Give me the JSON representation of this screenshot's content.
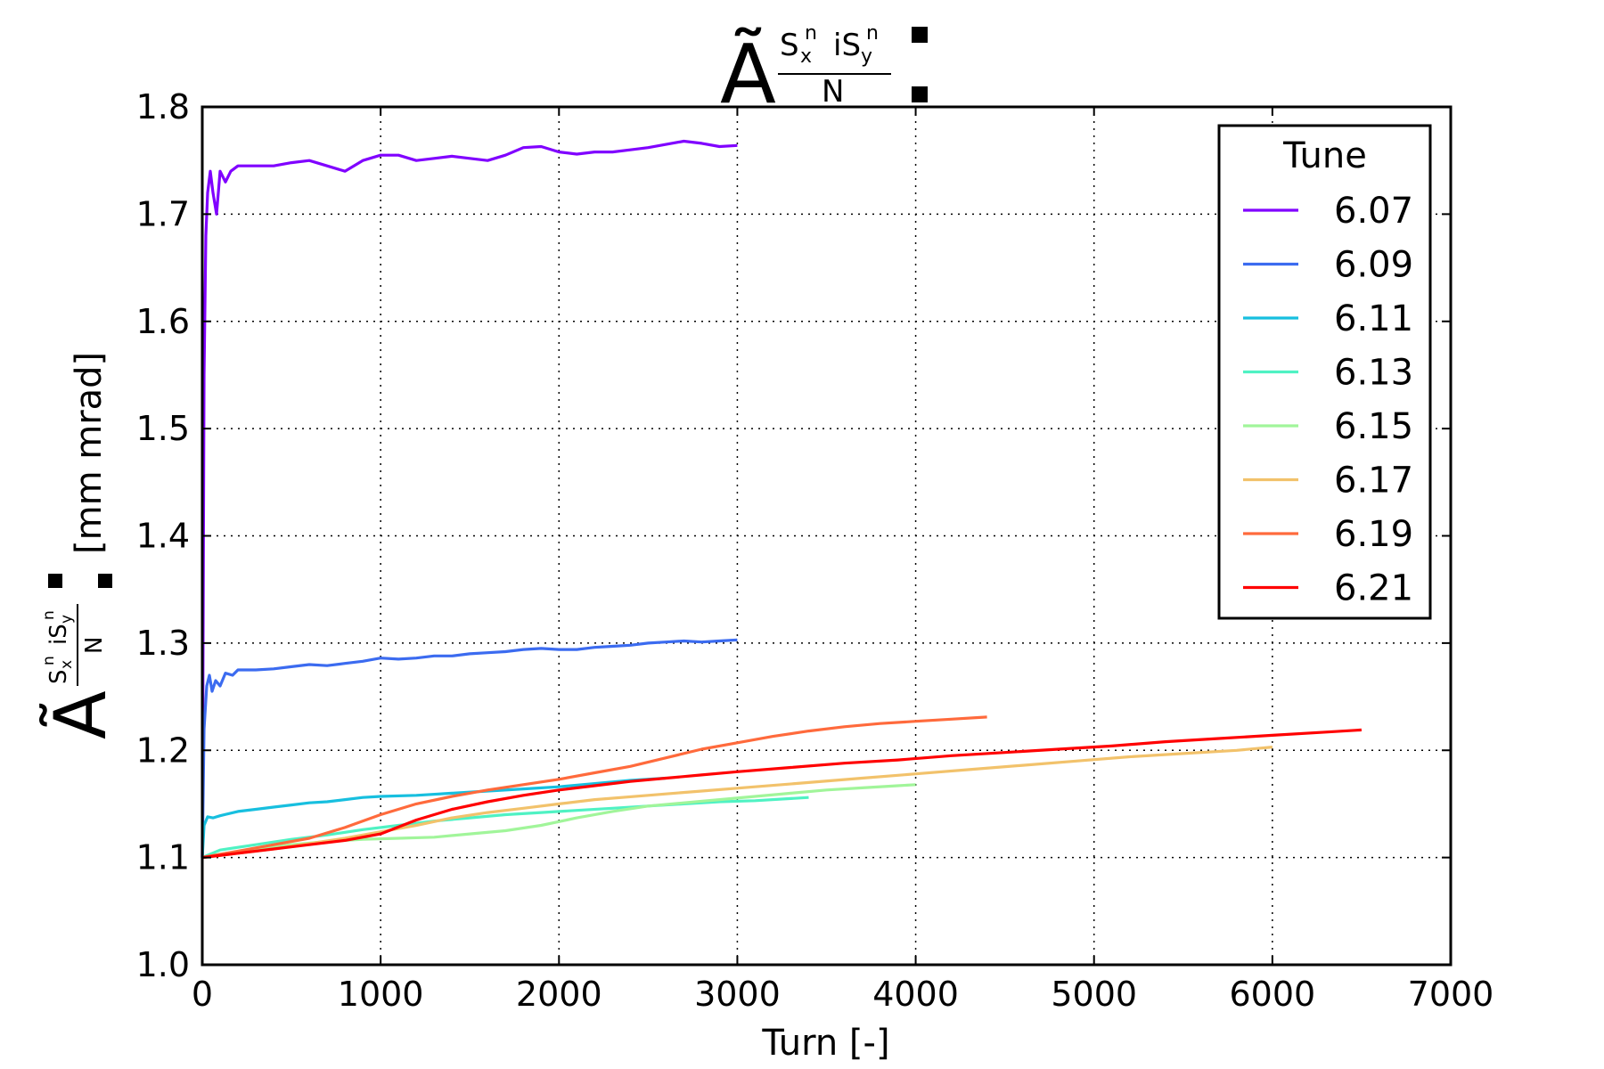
{
  "chart_data": {
    "type": "line",
    "title": "Ã(S_x^n iS_y^n / N):",
    "title_parts": {
      "main": "Ã",
      "num_a": "S",
      "num_a_sub": "x",
      "num_a_sup": "n",
      "num_b": "iS",
      "num_b_sub": "y",
      "num_b_sup": "n",
      "den": "N"
    },
    "xlabel": "Turn [-]",
    "ylabel_suffix": "[mm mrad]",
    "xlim": [
      0,
      7000
    ],
    "ylim": [
      1.0,
      1.8
    ],
    "xticks": [
      "0",
      "1000",
      "2000",
      "3000",
      "4000",
      "5000",
      "6000",
      "7000"
    ],
    "yticks": [
      "1.0",
      "1.1",
      "1.2",
      "1.3",
      "1.4",
      "1.5",
      "1.6",
      "1.7",
      "1.8"
    ],
    "grid": true,
    "legend": {
      "title": "Tune",
      "placement": "top-right"
    },
    "series": [
      {
        "name": "6.07",
        "color": "#8000ff",
        "points": [
          [
            0,
            1.1
          ],
          [
            10,
            1.55
          ],
          [
            20,
            1.68
          ],
          [
            30,
            1.72
          ],
          [
            45,
            1.74
          ],
          [
            60,
            1.72
          ],
          [
            80,
            1.7
          ],
          [
            100,
            1.74
          ],
          [
            130,
            1.73
          ],
          [
            160,
            1.74
          ],
          [
            200,
            1.745
          ],
          [
            300,
            1.745
          ],
          [
            400,
            1.745
          ],
          [
            500,
            1.748
          ],
          [
            600,
            1.75
          ],
          [
            700,
            1.745
          ],
          [
            800,
            1.74
          ],
          [
            900,
            1.75
          ],
          [
            1000,
            1.755
          ],
          [
            1100,
            1.755
          ],
          [
            1200,
            1.75
          ],
          [
            1300,
            1.752
          ],
          [
            1400,
            1.754
          ],
          [
            1500,
            1.752
          ],
          [
            1600,
            1.75
          ],
          [
            1700,
            1.755
          ],
          [
            1800,
            1.762
          ],
          [
            1900,
            1.763
          ],
          [
            2000,
            1.758
          ],
          [
            2100,
            1.756
          ],
          [
            2200,
            1.758
          ],
          [
            2300,
            1.758
          ],
          [
            2400,
            1.76
          ],
          [
            2500,
            1.762
          ],
          [
            2600,
            1.765
          ],
          [
            2700,
            1.768
          ],
          [
            2800,
            1.766
          ],
          [
            2900,
            1.763
          ],
          [
            3000,
            1.764
          ]
        ]
      },
      {
        "name": "6.09",
        "color": "#3b6bf0",
        "points": [
          [
            0,
            1.1
          ],
          [
            10,
            1.22
          ],
          [
            25,
            1.26
          ],
          [
            40,
            1.27
          ],
          [
            55,
            1.255
          ],
          [
            75,
            1.265
          ],
          [
            100,
            1.26
          ],
          [
            130,
            1.272
          ],
          [
            170,
            1.27
          ],
          [
            200,
            1.275
          ],
          [
            300,
            1.275
          ],
          [
            400,
            1.276
          ],
          [
            500,
            1.278
          ],
          [
            600,
            1.28
          ],
          [
            700,
            1.279
          ],
          [
            800,
            1.281
          ],
          [
            900,
            1.283
          ],
          [
            1000,
            1.286
          ],
          [
            1100,
            1.285
          ],
          [
            1200,
            1.286
          ],
          [
            1300,
            1.288
          ],
          [
            1400,
            1.288
          ],
          [
            1500,
            1.29
          ],
          [
            1600,
            1.291
          ],
          [
            1700,
            1.292
          ],
          [
            1800,
            1.294
          ],
          [
            1900,
            1.295
          ],
          [
            2000,
            1.294
          ],
          [
            2100,
            1.294
          ],
          [
            2200,
            1.296
          ],
          [
            2300,
            1.297
          ],
          [
            2400,
            1.298
          ],
          [
            2500,
            1.3
          ],
          [
            2600,
            1.301
          ],
          [
            2700,
            1.302
          ],
          [
            2800,
            1.301
          ],
          [
            2900,
            1.302
          ],
          [
            3000,
            1.303
          ]
        ]
      },
      {
        "name": "6.11",
        "color": "#17bfdf",
        "points": [
          [
            0,
            1.1
          ],
          [
            10,
            1.13
          ],
          [
            30,
            1.138
          ],
          [
            60,
            1.137
          ],
          [
            100,
            1.139
          ],
          [
            200,
            1.143
          ],
          [
            300,
            1.145
          ],
          [
            400,
            1.147
          ],
          [
            500,
            1.149
          ],
          [
            600,
            1.151
          ],
          [
            700,
            1.152
          ],
          [
            800,
            1.154
          ],
          [
            900,
            1.156
          ],
          [
            1000,
            1.157
          ],
          [
            1200,
            1.158
          ],
          [
            1400,
            1.16
          ],
          [
            1600,
            1.162
          ],
          [
            1800,
            1.164
          ],
          [
            2000,
            1.166
          ],
          [
            2200,
            1.169
          ],
          [
            2400,
            1.172
          ],
          [
            2600,
            1.174
          ]
        ]
      },
      {
        "name": "6.13",
        "color": "#4ff2c3",
        "points": [
          [
            0,
            1.1
          ],
          [
            100,
            1.107
          ],
          [
            300,
            1.112
          ],
          [
            500,
            1.117
          ],
          [
            700,
            1.121
          ],
          [
            900,
            1.126
          ],
          [
            1100,
            1.13
          ],
          [
            1300,
            1.134
          ],
          [
            1500,
            1.137
          ],
          [
            1700,
            1.14
          ],
          [
            1900,
            1.142
          ],
          [
            2100,
            1.144
          ],
          [
            2300,
            1.146
          ],
          [
            2500,
            1.148
          ],
          [
            2700,
            1.15
          ],
          [
            2900,
            1.152
          ],
          [
            3100,
            1.153
          ],
          [
            3300,
            1.155
          ],
          [
            3400,
            1.156
          ]
        ]
      },
      {
        "name": "6.15",
        "color": "#a1f59a",
        "points": [
          [
            0,
            1.1
          ],
          [
            100,
            1.103
          ],
          [
            300,
            1.108
          ],
          [
            500,
            1.112
          ],
          [
            700,
            1.115
          ],
          [
            900,
            1.117
          ],
          [
            1100,
            1.118
          ],
          [
            1300,
            1.119
          ],
          [
            1500,
            1.122
          ],
          [
            1700,
            1.125
          ],
          [
            1900,
            1.13
          ],
          [
            2100,
            1.137
          ],
          [
            2300,
            1.143
          ],
          [
            2500,
            1.148
          ],
          [
            2700,
            1.151
          ],
          [
            2900,
            1.154
          ],
          [
            3100,
            1.157
          ],
          [
            3300,
            1.16
          ],
          [
            3500,
            1.163
          ],
          [
            3700,
            1.165
          ],
          [
            3900,
            1.167
          ],
          [
            4000,
            1.168
          ]
        ]
      },
      {
        "name": "6.17",
        "color": "#f2c26b",
        "points": [
          [
            0,
            1.1
          ],
          [
            200,
            1.104
          ],
          [
            400,
            1.108
          ],
          [
            600,
            1.113
          ],
          [
            800,
            1.118
          ],
          [
            1000,
            1.124
          ],
          [
            1200,
            1.13
          ],
          [
            1400,
            1.137
          ],
          [
            1600,
            1.142
          ],
          [
            1800,
            1.146
          ],
          [
            2000,
            1.15
          ],
          [
            2200,
            1.154
          ],
          [
            2500,
            1.158
          ],
          [
            2800,
            1.162
          ],
          [
            3100,
            1.166
          ],
          [
            3400,
            1.17
          ],
          [
            3700,
            1.174
          ],
          [
            4000,
            1.178
          ],
          [
            4300,
            1.182
          ],
          [
            4600,
            1.186
          ],
          [
            4900,
            1.19
          ],
          [
            5200,
            1.194
          ],
          [
            5500,
            1.197
          ],
          [
            5800,
            1.2
          ],
          [
            6000,
            1.203
          ]
        ]
      },
      {
        "name": "6.19",
        "color": "#ff6a3c",
        "points": [
          [
            0,
            1.1
          ],
          [
            200,
            1.106
          ],
          [
            400,
            1.112
          ],
          [
            600,
            1.118
          ],
          [
            800,
            1.128
          ],
          [
            1000,
            1.14
          ],
          [
            1200,
            1.15
          ],
          [
            1400,
            1.157
          ],
          [
            1600,
            1.163
          ],
          [
            1800,
            1.168
          ],
          [
            2000,
            1.173
          ],
          [
            2200,
            1.179
          ],
          [
            2400,
            1.185
          ],
          [
            2600,
            1.193
          ],
          [
            2800,
            1.201
          ],
          [
            3000,
            1.207
          ],
          [
            3200,
            1.213
          ],
          [
            3400,
            1.218
          ],
          [
            3600,
            1.222
          ],
          [
            3800,
            1.225
          ],
          [
            4000,
            1.227
          ],
          [
            4200,
            1.229
          ],
          [
            4400,
            1.231
          ]
        ]
      },
      {
        "name": "6.21",
        "color": "#ff0000",
        "points": [
          [
            0,
            1.1
          ],
          [
            200,
            1.104
          ],
          [
            400,
            1.108
          ],
          [
            600,
            1.112
          ],
          [
            800,
            1.116
          ],
          [
            1000,
            1.122
          ],
          [
            1200,
            1.135
          ],
          [
            1400,
            1.145
          ],
          [
            1600,
            1.152
          ],
          [
            1800,
            1.158
          ],
          [
            2000,
            1.163
          ],
          [
            2200,
            1.167
          ],
          [
            2400,
            1.171
          ],
          [
            2600,
            1.174
          ],
          [
            2800,
            1.177
          ],
          [
            3000,
            1.18
          ],
          [
            3300,
            1.184
          ],
          [
            3600,
            1.188
          ],
          [
            3900,
            1.191
          ],
          [
            4200,
            1.195
          ],
          [
            4500,
            1.198
          ],
          [
            4800,
            1.201
          ],
          [
            5100,
            1.204
          ],
          [
            5400,
            1.208
          ],
          [
            5700,
            1.211
          ],
          [
            6000,
            1.214
          ],
          [
            6300,
            1.217
          ],
          [
            6500,
            1.219
          ]
        ]
      }
    ]
  }
}
